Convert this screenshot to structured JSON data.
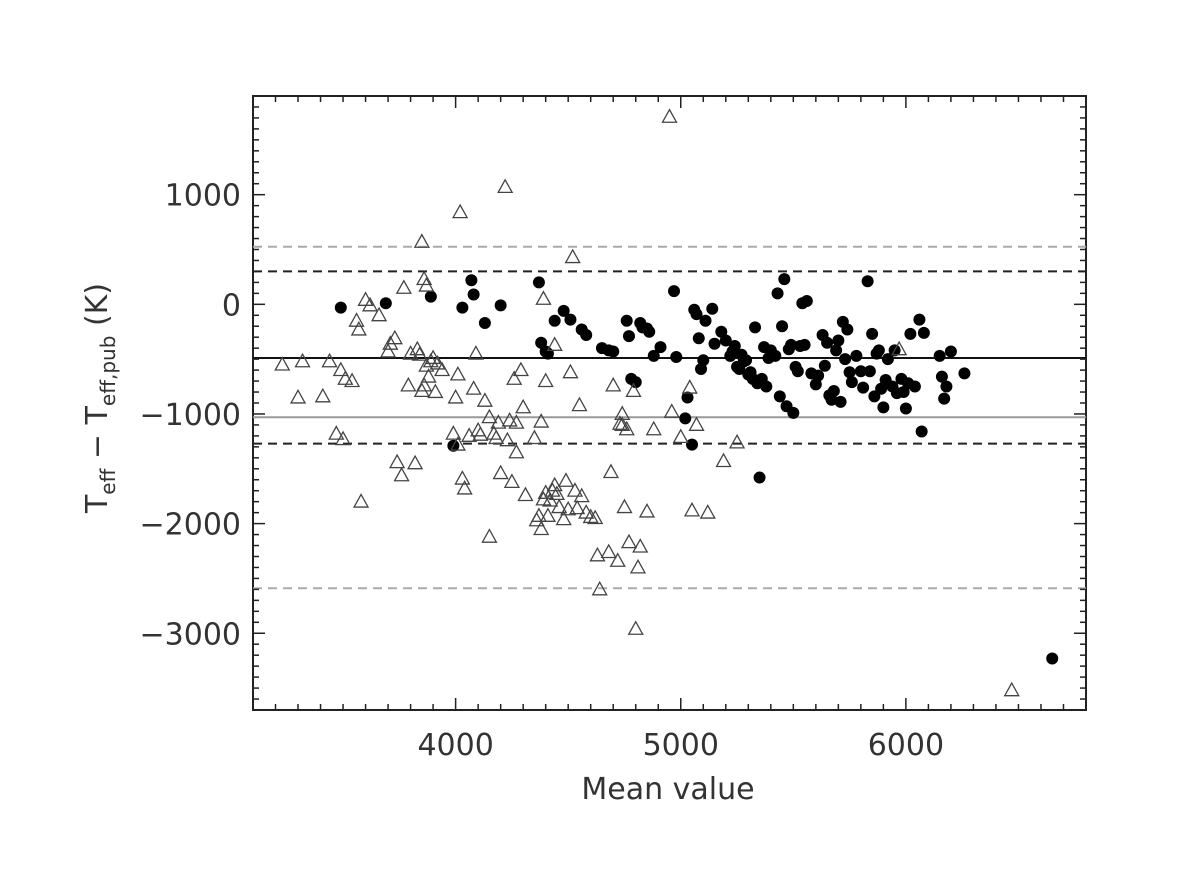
{
  "chart_data": {
    "type": "scatter",
    "title": "",
    "xlabel": "Mean value",
    "ylabel": {
      "main": "T",
      "sub1": "eff",
      "dash": " − ",
      "main2": "T",
      "sub2": "eff,pub",
      "unit": " (K)"
    },
    "xlim": [
      3100,
      6800
    ],
    "ylim": [
      -3700,
      1900
    ],
    "x_ticks": [
      4000,
      5000,
      6000
    ],
    "y_ticks": [
      -3000,
      -2000,
      -1000,
      0,
      1000
    ],
    "grid": false,
    "colors": {
      "axis": "#222222",
      "mean_line_black": "#111111",
      "mean_line_gray": "#999999",
      "sigma_black": "#222222",
      "sigma_gray": "#aaaaaa",
      "filled_points": "#000000",
      "open_points": "#444444"
    },
    "reference_lines": [
      {
        "name": "mean_black",
        "y": -490,
        "style": "solid",
        "color": "#111111"
      },
      {
        "name": "mean_gray",
        "y": -1030,
        "style": "solid",
        "color": "#999999"
      },
      {
        "name": "upper_black",
        "y": 300,
        "style": "dashed",
        "color": "#222222"
      },
      {
        "name": "lower_black",
        "y": -1270,
        "style": "dashed",
        "color": "#222222"
      },
      {
        "name": "upper_gray",
        "y": 525,
        "style": "dashed",
        "color": "#aaaaaa"
      },
      {
        "name": "lower_gray",
        "y": -2590,
        "style": "dashed",
        "color": "#aaaaaa"
      }
    ],
    "series": [
      {
        "marker": "filled-circle",
        "points": [
          [
            3490,
            -30
          ],
          [
            3690,
            10
          ],
          [
            3890,
            70
          ],
          [
            3990,
            -1290
          ],
          [
            4030,
            -30
          ],
          [
            4070,
            220
          ],
          [
            4080,
            90
          ],
          [
            4130,
            -170
          ],
          [
            4200,
            -10
          ],
          [
            4370,
            200
          ],
          [
            4380,
            -350
          ],
          [
            4400,
            -430
          ],
          [
            4410,
            -450
          ],
          [
            4440,
            -150
          ],
          [
            4480,
            -60
          ],
          [
            4510,
            -140
          ],
          [
            4560,
            -230
          ],
          [
            4580,
            -280
          ],
          [
            4650,
            -400
          ],
          [
            4680,
            -420
          ],
          [
            4700,
            -430
          ],
          [
            4760,
            -150
          ],
          [
            4770,
            -290
          ],
          [
            4780,
            -680
          ],
          [
            4800,
            -710
          ],
          [
            4820,
            -170
          ],
          [
            4830,
            -210
          ],
          [
            4850,
            -220
          ],
          [
            4860,
            -250
          ],
          [
            4880,
            -470
          ],
          [
            4910,
            -390
          ],
          [
            4970,
            120
          ],
          [
            4980,
            -480
          ],
          [
            5020,
            -1040
          ],
          [
            5030,
            -850
          ],
          [
            5050,
            -1280
          ],
          [
            5060,
            -50
          ],
          [
            5070,
            -90
          ],
          [
            5080,
            -310
          ],
          [
            5090,
            -590
          ],
          [
            5100,
            -510
          ],
          [
            5110,
            -150
          ],
          [
            5140,
            -40
          ],
          [
            5150,
            -360
          ],
          [
            5180,
            -250
          ],
          [
            5200,
            -330
          ],
          [
            5220,
            -470
          ],
          [
            5230,
            -430
          ],
          [
            5240,
            -380
          ],
          [
            5250,
            -570
          ],
          [
            5260,
            -590
          ],
          [
            5270,
            -460
          ],
          [
            5280,
            -520
          ],
          [
            5290,
            -510
          ],
          [
            5300,
            -640
          ],
          [
            5310,
            -620
          ],
          [
            5320,
            -680
          ],
          [
            5330,
            -210
          ],
          [
            5340,
            -720
          ],
          [
            5350,
            -1580
          ],
          [
            5360,
            -680
          ],
          [
            5370,
            -390
          ],
          [
            5380,
            -750
          ],
          [
            5390,
            -490
          ],
          [
            5400,
            -420
          ],
          [
            5420,
            -470
          ],
          [
            5430,
            100
          ],
          [
            5440,
            -840
          ],
          [
            5450,
            -200
          ],
          [
            5460,
            230
          ],
          [
            5470,
            -930
          ],
          [
            5480,
            -410
          ],
          [
            5490,
            -370
          ],
          [
            5500,
            -990
          ],
          [
            5510,
            -570
          ],
          [
            5520,
            -610
          ],
          [
            5530,
            -380
          ],
          [
            5540,
            10
          ],
          [
            5550,
            -370
          ],
          [
            5560,
            30
          ],
          [
            5580,
            -630
          ],
          [
            5600,
            -730
          ],
          [
            5610,
            -650
          ],
          [
            5630,
            -280
          ],
          [
            5640,
            -560
          ],
          [
            5650,
            -350
          ],
          [
            5660,
            -830
          ],
          [
            5670,
            -870
          ],
          [
            5680,
            -790
          ],
          [
            5690,
            -420
          ],
          [
            5700,
            -330
          ],
          [
            5710,
            -890
          ],
          [
            5720,
            -160
          ],
          [
            5730,
            -500
          ],
          [
            5740,
            -230
          ],
          [
            5750,
            -620
          ],
          [
            5760,
            -710
          ],
          [
            5780,
            -470
          ],
          [
            5800,
            -610
          ],
          [
            5810,
            -760
          ],
          [
            5830,
            210
          ],
          [
            5840,
            -610
          ],
          [
            5850,
            -270
          ],
          [
            5860,
            -840
          ],
          [
            5870,
            -450
          ],
          [
            5880,
            -420
          ],
          [
            5890,
            -770
          ],
          [
            5900,
            -940
          ],
          [
            5910,
            -690
          ],
          [
            5920,
            -500
          ],
          [
            5940,
            -750
          ],
          [
            5950,
            -420
          ],
          [
            5960,
            -810
          ],
          [
            5980,
            -680
          ],
          [
            5990,
            -800
          ],
          [
            6000,
            -950
          ],
          [
            6010,
            -720
          ],
          [
            6020,
            -270
          ],
          [
            6040,
            -750
          ],
          [
            6060,
            -140
          ],
          [
            6070,
            -1160
          ],
          [
            6080,
            -260
          ],
          [
            6150,
            -470
          ],
          [
            6160,
            -660
          ],
          [
            6170,
            -860
          ],
          [
            6180,
            -750
          ],
          [
            6200,
            -430
          ],
          [
            6260,
            -630
          ],
          [
            6650,
            -3230
          ]
        ]
      },
      {
        "marker": "open-triangle",
        "points": [
          [
            3230,
            -550
          ],
          [
            3300,
            -850
          ],
          [
            3320,
            -520
          ],
          [
            3410,
            -840
          ],
          [
            3440,
            -520
          ],
          [
            3470,
            -1180
          ],
          [
            3490,
            -600
          ],
          [
            3500,
            -1230
          ],
          [
            3510,
            -680
          ],
          [
            3540,
            -700
          ],
          [
            3560,
            -150
          ],
          [
            3570,
            -230
          ],
          [
            3580,
            -1800
          ],
          [
            3600,
            40
          ],
          [
            3620,
            -10
          ],
          [
            3660,
            -100
          ],
          [
            3700,
            -430
          ],
          [
            3710,
            -360
          ],
          [
            3730,
            -310
          ],
          [
            3740,
            -1440
          ],
          [
            3760,
            -1560
          ],
          [
            3770,
            150
          ],
          [
            3790,
            -740
          ],
          [
            3800,
            -450
          ],
          [
            3820,
            -1450
          ],
          [
            3830,
            -410
          ],
          [
            3840,
            -460
          ],
          [
            3850,
            -790
          ],
          [
            3860,
            -740
          ],
          [
            3870,
            -560
          ],
          [
            3880,
            -660
          ],
          [
            3890,
            -520
          ],
          [
            3900,
            -490
          ],
          [
            3910,
            -800
          ],
          [
            3920,
            -540
          ],
          [
            3940,
            -600
          ],
          [
            3850,
            570
          ],
          [
            3860,
            230
          ],
          [
            3870,
            170
          ],
          [
            3990,
            -1180
          ],
          [
            4000,
            -850
          ],
          [
            4010,
            -1280
          ],
          [
            4010,
            -640
          ],
          [
            4020,
            840
          ],
          [
            4030,
            -1590
          ],
          [
            4040,
            -1680
          ],
          [
            4060,
            -1200
          ],
          [
            4080,
            -770
          ],
          [
            4090,
            -450
          ],
          [
            4100,
            -1150
          ],
          [
            4110,
            -1190
          ],
          [
            4130,
            -880
          ],
          [
            4150,
            -2120
          ],
          [
            4150,
            -1030
          ],
          [
            4170,
            -1180
          ],
          [
            4180,
            -1220
          ],
          [
            4190,
            -1080
          ],
          [
            4200,
            -1540
          ],
          [
            4220,
            1070
          ],
          [
            4230,
            -1240
          ],
          [
            4240,
            -1060
          ],
          [
            4250,
            -1620
          ],
          [
            4260,
            -680
          ],
          [
            4270,
            -1350
          ],
          [
            4270,
            -1080
          ],
          [
            4290,
            -600
          ],
          [
            4300,
            -940
          ],
          [
            4310,
            -1740
          ],
          [
            4350,
            -1220
          ],
          [
            4360,
            -1970
          ],
          [
            4370,
            -1930
          ],
          [
            4380,
            -2050
          ],
          [
            4390,
            -1780
          ],
          [
            4400,
            -1720
          ],
          [
            4410,
            -1930
          ],
          [
            4420,
            -1790
          ],
          [
            4430,
            -1700
          ],
          [
            4440,
            -1650
          ],
          [
            4450,
            -1730
          ],
          [
            4460,
            -1850
          ],
          [
            4480,
            -1960
          ],
          [
            4490,
            -1610
          ],
          [
            4500,
            -1870
          ],
          [
            4510,
            -620
          ],
          [
            4520,
            430
          ],
          [
            4530,
            -1700
          ],
          [
            4540,
            -1860
          ],
          [
            4550,
            -920
          ],
          [
            4560,
            -1750
          ],
          [
            4580,
            -1900
          ],
          [
            4600,
            -1940
          ],
          [
            4620,
            -1950
          ],
          [
            4630,
            -2290
          ],
          [
            4640,
            -2600
          ],
          [
            4680,
            -2260
          ],
          [
            4690,
            -1530
          ],
          [
            4700,
            -740
          ],
          [
            4720,
            -2340
          ],
          [
            4730,
            -1090
          ],
          [
            4740,
            -1100
          ],
          [
            4750,
            -1850
          ],
          [
            4760,
            -1140
          ],
          [
            4770,
            -2170
          ],
          [
            4790,
            -790
          ],
          [
            4800,
            -2960
          ],
          [
            4810,
            -2400
          ],
          [
            4820,
            -2210
          ],
          [
            4850,
            -1890
          ],
          [
            4880,
            -1140
          ],
          [
            4950,
            1710
          ],
          [
            4960,
            -980
          ],
          [
            5000,
            -1210
          ],
          [
            5040,
            -760
          ],
          [
            5050,
            -1880
          ],
          [
            5070,
            -1100
          ],
          [
            5120,
            -1900
          ],
          [
            5190,
            -1430
          ],
          [
            5250,
            -1260
          ],
          [
            5970,
            -410
          ],
          [
            6470,
            -3520
          ],
          [
            4390,
            50
          ],
          [
            4400,
            -700
          ],
          [
            4440,
            -370
          ],
          [
            4380,
            -1070
          ],
          [
            4740,
            -1000
          ]
        ]
      }
    ]
  }
}
